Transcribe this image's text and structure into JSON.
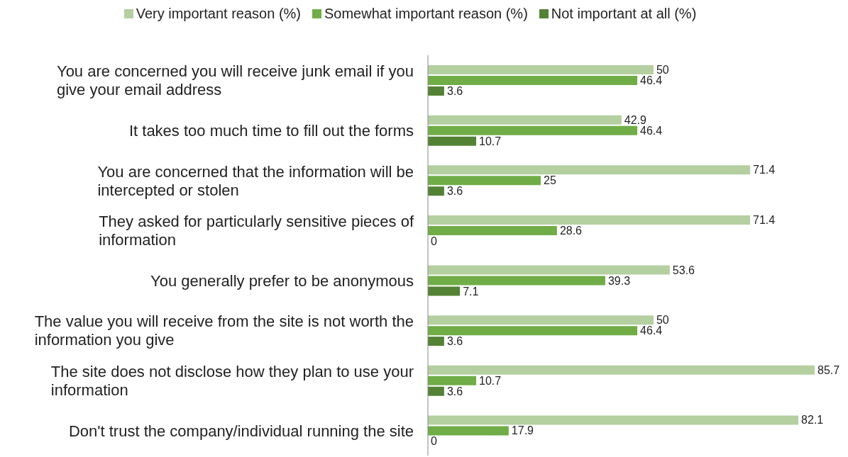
{
  "chart_data": {
    "type": "bar",
    "orientation": "horizontal",
    "categories": [
      "You are concerned you will receive junk email if you give your email address",
      "It takes too much time to fill out the forms",
      "You are concerned that the information will be intercepted or stolen",
      "They asked for particularly sensitive pieces of information",
      "You generally prefer to be anonymous",
      "The value you will receive from the site is not worth the information you give",
      "The site does not disclose how they plan to use your information",
      "Don't trust the company/individual running the site"
    ],
    "series": [
      {
        "name": "Very important reason (%)",
        "color": "#b4cfa0",
        "values": [
          50,
          42.9,
          71.4,
          71.4,
          53.6,
          50,
          85.7,
          82.1
        ]
      },
      {
        "name": "Somewhat important reason (%)",
        "color": "#70ad47",
        "values": [
          46.4,
          46.4,
          25,
          28.6,
          39.3,
          46.4,
          10.7,
          17.9
        ]
      },
      {
        "name": "Not important at all (%)",
        "color": "#548235",
        "values": [
          3.6,
          10.7,
          3.6,
          0,
          7.1,
          3.6,
          3.6,
          0
        ]
      }
    ],
    "data_labels": true,
    "legend": "top",
    "grid": false
  }
}
